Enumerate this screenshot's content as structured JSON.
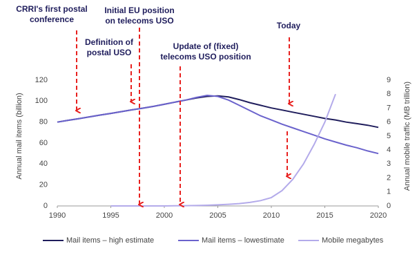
{
  "chart_data": {
    "type": "line",
    "x": [
      1990,
      1991,
      1992,
      1993,
      1994,
      1995,
      1996,
      1997,
      1998,
      1999,
      2000,
      2001,
      2002,
      2003,
      2004,
      2005,
      2006,
      2007,
      2008,
      2009,
      2010,
      2011,
      2012,
      2013,
      2014,
      2015,
      2016,
      2017,
      2018,
      2019,
      2020
    ],
    "series": [
      {
        "name": "Mail items – high estimate",
        "color": "#1f1d5c",
        "values": [
          80,
          81.7,
          83.3,
          85,
          86.7,
          88.3,
          90,
          91.7,
          93.3,
          95,
          97,
          99,
          101,
          103,
          104.5,
          105,
          104,
          101.5,
          98.5,
          96,
          93.5,
          91.5,
          89.5,
          87.5,
          85.5,
          83.5,
          82,
          80,
          78.5,
          77,
          75
        ]
      },
      {
        "name": "Mail items – lowestimate",
        "color": "#6a62cc",
        "values": [
          80,
          81.7,
          83.3,
          85,
          86.7,
          88.3,
          90,
          91.7,
          93.3,
          95,
          97,
          99,
          101,
          103.5,
          105.5,
          104.5,
          101,
          96,
          91,
          86,
          82,
          78,
          74.5,
          71,
          67.5,
          64,
          61,
          58,
          55.5,
          52.5,
          50
        ]
      },
      {
        "name": "Mobile megabytes",
        "color": "#b3aaea",
        "axis": "y2",
        "values": [
          null,
          null,
          null,
          null,
          null,
          0,
          0,
          0,
          0,
          0,
          0,
          0.01,
          0.02,
          0.03,
          0.05,
          0.08,
          0.12,
          0.17,
          0.25,
          0.38,
          0.6,
          1.1,
          1.9,
          3,
          4.4,
          6,
          8,
          null,
          null,
          null,
          null
        ]
      }
    ],
    "xlim": [
      1990,
      2020
    ],
    "xticks": [
      1990,
      1995,
      2000,
      2005,
      2010,
      2015,
      2020
    ],
    "ylim": [
      0,
      120
    ],
    "yticks": [
      0,
      20,
      40,
      60,
      80,
      100,
      120
    ],
    "y2lim": [
      0,
      9
    ],
    "y2ticks": [
      0,
      1,
      2,
      3,
      4,
      5,
      6,
      7,
      8,
      9
    ],
    "ylabel": "Annual mail items (billion)",
    "y2label": "Annual mobile traffic (MB trillion)",
    "annotations": [
      {
        "lines": [
          "CRRI's first postal",
          "conference"
        ]
      },
      {
        "lines": [
          "Definition  of",
          "postal USO"
        ]
      },
      {
        "lines": [
          "Initial EU position",
          "on telecoms USO"
        ]
      },
      {
        "lines": [
          "Update of (fixed)",
          "telecoms USO position"
        ]
      },
      {
        "lines": [
          "Today"
        ]
      }
    ],
    "arrow_color": "#e8201e",
    "legend": "bottom"
  }
}
